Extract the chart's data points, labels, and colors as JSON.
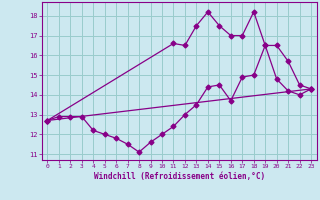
{
  "xlabel": "Windchill (Refroidissement éolien,°C)",
  "bg_color": "#cce8f0",
  "line_color": "#880088",
  "grid_color": "#99cccc",
  "xlim": [
    -0.5,
    23.5
  ],
  "ylim": [
    10.7,
    18.7
  ],
  "yticks": [
    11,
    12,
    13,
    14,
    15,
    16,
    17,
    18
  ],
  "xticks": [
    0,
    1,
    2,
    3,
    4,
    5,
    6,
    7,
    8,
    9,
    10,
    11,
    12,
    13,
    14,
    15,
    16,
    17,
    18,
    19,
    20,
    21,
    22,
    23
  ],
  "line1_x": [
    0,
    1,
    2,
    3,
    4,
    5,
    6,
    7,
    8,
    9,
    10,
    11,
    12,
    13,
    14,
    15,
    16,
    17,
    18,
    19,
    20,
    21,
    22,
    23
  ],
  "line1_y": [
    12.7,
    12.9,
    12.9,
    12.9,
    12.2,
    12.0,
    11.8,
    11.5,
    11.1,
    11.6,
    12.0,
    12.4,
    13.0,
    13.5,
    14.4,
    14.5,
    13.7,
    14.9,
    15.0,
    16.5,
    14.8,
    14.2,
    14.0,
    14.3
  ],
  "line2_x": [
    0,
    11,
    12,
    13,
    14,
    15,
    16,
    17,
    18,
    19,
    20,
    21,
    22,
    23
  ],
  "line2_y": [
    12.7,
    16.6,
    16.5,
    17.5,
    18.2,
    17.5,
    17.0,
    17.0,
    18.2,
    16.5,
    16.5,
    15.7,
    14.5,
    14.3
  ],
  "line3_x": [
    0,
    23
  ],
  "line3_y": [
    12.7,
    14.3
  ]
}
